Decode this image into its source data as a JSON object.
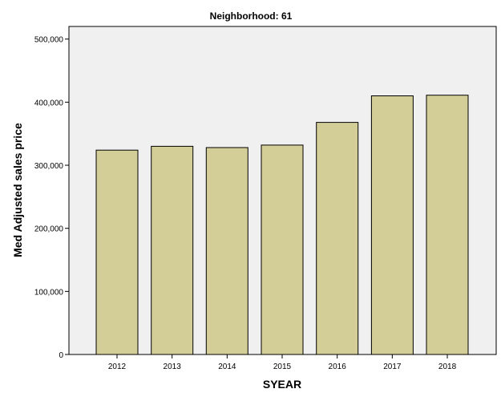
{
  "chart_data": {
    "type": "bar",
    "title": "Neighborhood: 61",
    "xlabel": "SYEAR",
    "ylabel": "Med Adjusted sales price",
    "categories": [
      "2012",
      "2013",
      "2014",
      "2015",
      "2016",
      "2017",
      "2018"
    ],
    "values": [
      324000,
      330000,
      328000,
      332000,
      368000,
      410000,
      411000
    ],
    "ylim": [
      0,
      520000
    ],
    "yticks": [
      0,
      100000,
      200000,
      300000,
      400000,
      500000
    ],
    "ytick_labels": [
      "0",
      "100,000",
      "200,000",
      "300,000",
      "400,000",
      "500,000"
    ],
    "grid": false,
    "legend": "none",
    "colors": {
      "plot_background": "#f0f0f0",
      "bar_fill": "#d3ce97",
      "bar_stroke": "#000000"
    }
  }
}
